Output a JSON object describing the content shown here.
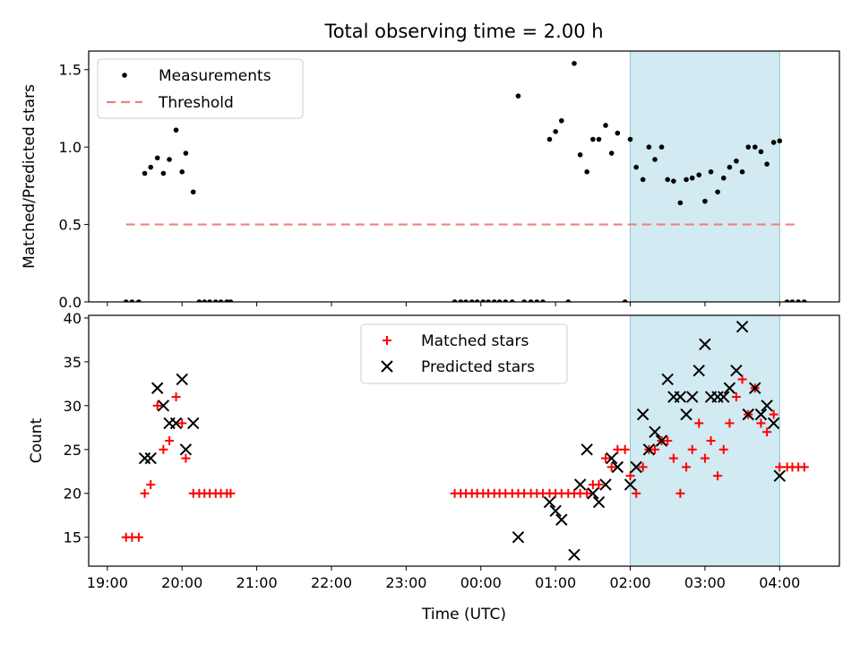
{
  "title": "Total observing time = 2.00 h",
  "colors": {
    "highlight": "#add8e6",
    "measurement": "#000000",
    "threshold": "#f08080",
    "matched": "#ff0000",
    "predicted": "#000000"
  },
  "highlight_span_hours": [
    26.0,
    28.0
  ],
  "chart_data": [
    {
      "type": "scatter",
      "name": "ratio",
      "ylabel": "Matched/Predicted stars",
      "xlim": [
        18.75,
        28.8
      ],
      "ylim": [
        0,
        1.62
      ],
      "yticks": [
        0.0,
        0.5,
        1.0,
        1.5
      ],
      "ytick_labels": [
        "0.0",
        "0.5",
        "1.0",
        "1.5"
      ],
      "legend": {
        "placement": "top-left",
        "entries": [
          "Measurements",
          "Threshold"
        ]
      },
      "threshold": {
        "value": 0.5,
        "x": [
          19.25,
          28.25
        ]
      },
      "series": [
        {
          "name": "Measurements",
          "x": [
            19.25,
            19.33,
            19.42,
            19.5,
            19.58,
            19.67,
            19.75,
            19.83,
            19.92,
            20.0,
            20.05,
            20.15,
            20.23,
            20.3,
            20.37,
            20.45,
            20.52,
            20.6,
            20.65,
            23.65,
            23.73,
            23.8,
            23.88,
            23.95,
            24.03,
            24.1,
            24.18,
            24.25,
            24.33,
            24.42,
            24.5,
            24.58,
            24.67,
            24.75,
            24.83,
            24.92,
            25.0,
            25.08,
            25.17,
            25.25,
            25.33,
            25.42,
            25.5,
            25.58,
            25.67,
            25.75,
            25.83,
            25.93,
            26.0,
            26.08,
            26.17,
            26.25,
            26.33,
            26.42,
            26.5,
            26.58,
            26.67,
            26.75,
            26.83,
            26.92,
            27.0,
            27.08,
            27.17,
            27.25,
            27.33,
            27.42,
            27.5,
            27.58,
            27.67,
            27.75,
            27.83,
            27.92,
            28.0,
            28.1,
            28.17,
            28.25,
            28.33
          ],
          "y": [
            0.0,
            0.0,
            0.0,
            0.83,
            0.87,
            0.93,
            0.83,
            0.92,
            1.11,
            0.84,
            0.96,
            0.71,
            0.0,
            0.0,
            0.0,
            0.0,
            0.0,
            0.0,
            0.0,
            0.0,
            0.0,
            0.0,
            0.0,
            0.0,
            0.0,
            0.0,
            0.0,
            0.0,
            0.0,
            0.0,
            1.33,
            0.0,
            0.0,
            0.0,
            0.0,
            1.05,
            1.1,
            1.17,
            0.0,
            1.54,
            0.95,
            0.84,
            1.05,
            1.05,
            1.14,
            0.96,
            1.09,
            0.0,
            1.05,
            0.87,
            0.79,
            1.0,
            0.92,
            1.0,
            0.79,
            0.78,
            0.64,
            0.79,
            0.8,
            0.82,
            0.65,
            0.84,
            0.71,
            0.8,
            0.87,
            0.91,
            0.84,
            1.0,
            1.0,
            0.97,
            0.89,
            1.03,
            1.04,
            0.0,
            0.0,
            0.0,
            0.0
          ]
        }
      ]
    },
    {
      "type": "scatter",
      "name": "counts",
      "xlabel": "Time (UTC)",
      "ylabel": "Count",
      "xlim": [
        18.75,
        28.8
      ],
      "ylim": [
        11.7,
        40.3
      ],
      "xticks": [
        19,
        20,
        21,
        22,
        23,
        24,
        25,
        26,
        27,
        28
      ],
      "xtick_labels": [
        "19:00",
        "20:00",
        "21:00",
        "22:00",
        "23:00",
        "00:00",
        "01:00",
        "02:00",
        "03:00",
        "04:00"
      ],
      "yticks": [
        15,
        20,
        25,
        30,
        35,
        40
      ],
      "ytick_labels": [
        "15",
        "20",
        "25",
        "30",
        "35",
        "40"
      ],
      "legend": {
        "placement": "top-center",
        "entries": [
          "Matched stars",
          "Predicted stars"
        ]
      },
      "series": [
        {
          "name": "Matched stars",
          "x": [
            19.25,
            19.33,
            19.42,
            19.5,
            19.58,
            19.67,
            19.75,
            19.83,
            19.92,
            20.0,
            20.05,
            20.15,
            20.23,
            20.3,
            20.37,
            20.45,
            20.52,
            20.6,
            20.65,
            23.65,
            23.73,
            23.8,
            23.88,
            23.95,
            24.03,
            24.1,
            24.18,
            24.25,
            24.33,
            24.42,
            24.5,
            24.58,
            24.67,
            24.75,
            24.83,
            24.92,
            25.0,
            25.08,
            25.17,
            25.25,
            25.33,
            25.42,
            25.5,
            25.58,
            25.67,
            25.75,
            25.83,
            25.93,
            26.0,
            26.08,
            26.17,
            26.25,
            26.33,
            26.42,
            26.5,
            26.58,
            26.67,
            26.75,
            26.83,
            26.92,
            27.0,
            27.08,
            27.17,
            27.25,
            27.33,
            27.42,
            27.5,
            27.58,
            27.67,
            27.75,
            27.83,
            27.92,
            28.0,
            28.1,
            28.17,
            28.25,
            28.33
          ],
          "y": [
            15,
            15,
            15,
            20,
            21,
            30,
            25,
            26,
            31,
            28,
            24,
            20,
            20,
            20,
            20,
            20,
            20,
            20,
            20,
            20,
            20,
            20,
            20,
            20,
            20,
            20,
            20,
            20,
            20,
            20,
            20,
            20,
            20,
            20,
            20,
            20,
            20,
            20,
            20,
            20,
            20,
            20,
            21,
            21,
            24,
            23,
            25,
            25,
            22,
            20,
            23,
            25,
            25,
            26,
            26,
            24,
            20,
            23,
            25,
            28,
            24,
            26,
            22,
            25,
            28,
            31,
            33,
            29,
            32,
            28,
            27,
            29,
            23,
            23,
            23,
            23,
            23
          ]
        },
        {
          "name": "Predicted stars",
          "x": [
            19.5,
            19.58,
            19.67,
            19.75,
            19.83,
            19.92,
            20.0,
            20.05,
            20.15,
            24.5,
            24.92,
            25.0,
            25.08,
            25.25,
            25.33,
            25.42,
            25.5,
            25.58,
            25.67,
            25.75,
            25.83,
            26.0,
            26.08,
            26.17,
            26.25,
            26.33,
            26.42,
            26.5,
            26.58,
            26.67,
            26.75,
            26.83,
            26.92,
            27.0,
            27.08,
            27.17,
            27.25,
            27.33,
            27.42,
            27.5,
            27.58,
            27.67,
            27.75,
            27.83,
            27.92,
            28.0
          ],
          "y": [
            24,
            24,
            32,
            30,
            28,
            28,
            33,
            25,
            28,
            15,
            19,
            18,
            17,
            13,
            21,
            25,
            20,
            19,
            21,
            24,
            23,
            21,
            23,
            29,
            25,
            27,
            26,
            33,
            31,
            31,
            29,
            31,
            34,
            37,
            31,
            31,
            31,
            32,
            34,
            39,
            29,
            32,
            29,
            30,
            28,
            22
          ]
        }
      ]
    }
  ]
}
